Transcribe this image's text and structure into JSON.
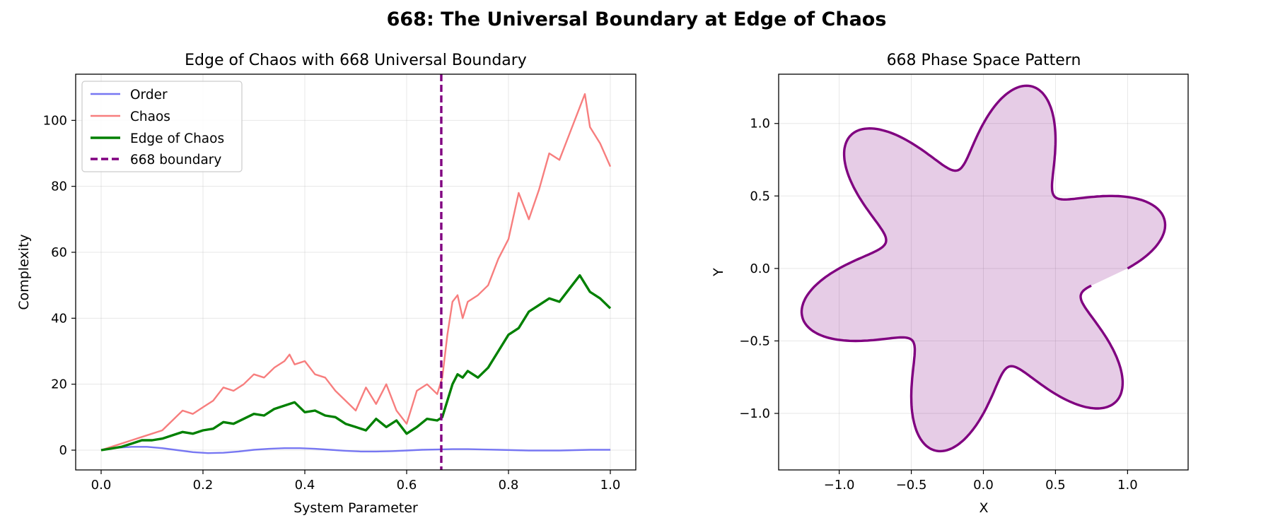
{
  "figure": {
    "suptitle": "668: The Universal Boundary at Edge of Chaos"
  },
  "chart_data": [
    {
      "type": "line",
      "title": "Edge of Chaos with 668 Universal Boundary",
      "xlabel": "System Parameter",
      "ylabel": "Complexity",
      "xlim": [
        -0.05,
        1.05
      ],
      "ylim": [
        -6,
        114
      ],
      "xticks": [
        0.0,
        0.2,
        0.4,
        0.6,
        0.8,
        1.0
      ],
      "xtick_labels": [
        "0.0",
        "0.2",
        "0.4",
        "0.6",
        "0.8",
        "1.0"
      ],
      "yticks": [
        0,
        20,
        40,
        60,
        80,
        100
      ],
      "ytick_labels": [
        "0",
        "20",
        "40",
        "60",
        "80",
        "100"
      ],
      "grid": true,
      "legend_position": "upper-left",
      "boundary": {
        "name": "668 boundary",
        "x": 0.668,
        "color": "#800080",
        "style": "dashed"
      },
      "series": [
        {
          "name": "Order",
          "color": "#7777f2",
          "x": [
            0.0,
            0.03,
            0.06,
            0.09,
            0.12,
            0.15,
            0.18,
            0.21,
            0.24,
            0.27,
            0.3,
            0.33,
            0.36,
            0.39,
            0.42,
            0.45,
            0.48,
            0.51,
            0.54,
            0.57,
            0.6,
            0.63,
            0.66,
            0.69,
            0.72,
            0.75,
            0.78,
            0.81,
            0.84,
            0.87,
            0.9,
            0.93,
            0.96,
            1.0
          ],
          "y": [
            0.0,
            0.7,
            1.0,
            1.0,
            0.6,
            0.0,
            -0.6,
            -0.9,
            -0.8,
            -0.4,
            0.1,
            0.4,
            0.6,
            0.6,
            0.4,
            0.1,
            -0.2,
            -0.4,
            -0.4,
            -0.3,
            -0.1,
            0.1,
            0.2,
            0.3,
            0.3,
            0.2,
            0.1,
            0.0,
            -0.1,
            -0.1,
            -0.1,
            0.0,
            0.1,
            0.1
          ]
        },
        {
          "name": "Chaos",
          "color": "#f77e7e",
          "x": [
            0.0,
            0.02,
            0.04,
            0.06,
            0.08,
            0.1,
            0.12,
            0.14,
            0.16,
            0.18,
            0.2,
            0.22,
            0.24,
            0.26,
            0.28,
            0.3,
            0.32,
            0.34,
            0.36,
            0.37,
            0.38,
            0.4,
            0.42,
            0.44,
            0.46,
            0.48,
            0.5,
            0.52,
            0.54,
            0.56,
            0.58,
            0.6,
            0.62,
            0.64,
            0.66,
            0.67,
            0.68,
            0.69,
            0.7,
            0.71,
            0.72,
            0.74,
            0.76,
            0.78,
            0.8,
            0.82,
            0.84,
            0.86,
            0.88,
            0.9,
            0.92,
            0.94,
            0.95,
            0.96,
            0.98,
            1.0
          ],
          "y": [
            0,
            1,
            2,
            3,
            4,
            5,
            6,
            9,
            12,
            11,
            13,
            15,
            19,
            18,
            20,
            23,
            22,
            25,
            27,
            29,
            26,
            27,
            23,
            22,
            18,
            15,
            12,
            19,
            14,
            20,
            12,
            8,
            18,
            20,
            17,
            22,
            35,
            45,
            47,
            40,
            45,
            47,
            50,
            58,
            64,
            78,
            70,
            79,
            90,
            88,
            96,
            104,
            108,
            98,
            93,
            86
          ]
        },
        {
          "name": "Edge of Chaos",
          "color": "#008000",
          "x": [
            0.0,
            0.02,
            0.04,
            0.06,
            0.08,
            0.1,
            0.12,
            0.14,
            0.16,
            0.18,
            0.2,
            0.22,
            0.24,
            0.26,
            0.28,
            0.3,
            0.32,
            0.34,
            0.36,
            0.38,
            0.4,
            0.42,
            0.44,
            0.46,
            0.48,
            0.5,
            0.52,
            0.54,
            0.56,
            0.58,
            0.6,
            0.62,
            0.64,
            0.66,
            0.67,
            0.68,
            0.69,
            0.7,
            0.71,
            0.72,
            0.74,
            0.76,
            0.78,
            0.8,
            0.82,
            0.84,
            0.86,
            0.88,
            0.9,
            0.92,
            0.94,
            0.96,
            0.98,
            1.0
          ],
          "y": [
            0,
            0.5,
            1,
            2,
            3,
            3,
            3.5,
            4.5,
            5.5,
            5,
            6,
            6.5,
            8.5,
            8,
            9.5,
            11,
            10.5,
            12.5,
            13.5,
            14.5,
            11.5,
            12,
            10.5,
            10,
            8,
            7,
            6,
            9.5,
            7,
            9,
            5,
            7,
            9.5,
            9,
            10,
            15,
            20,
            23,
            22,
            24,
            22,
            25,
            30,
            35,
            37,
            42,
            44,
            46,
            45,
            49,
            53,
            48,
            46,
            43
          ]
        }
      ]
    },
    {
      "type": "line",
      "title": "668 Phase Space Pattern",
      "xlabel": "X",
      "ylabel": "Y",
      "xlim": [
        -1.42,
        1.42
      ],
      "ylim": [
        -1.39,
        1.34
      ],
      "xticks": [
        -1.0,
        -0.5,
        0.0,
        0.5,
        1.0
      ],
      "xtick_labels": [
        "−1.0",
        "−0.5",
        "0.0",
        "0.5",
        "1.0"
      ],
      "yticks": [
        -1.0,
        -0.5,
        0.0,
        0.5,
        1.0
      ],
      "ytick_labels": [
        "−1.0",
        "−0.5",
        "0.0",
        "0.5",
        "1.0"
      ],
      "grid": true,
      "curve": {
        "color": "#800080",
        "fill_color": "#800080",
        "fill_alpha": 0.2,
        "description": "r(t) = 1 + 0.3*sin(6t), t in [0, 2π·(1 − 1/40)], x = r·cos t, y = r·sin t",
        "r_base": 1.0,
        "r_amplitude": 0.3,
        "lobes": 6,
        "t_end_fraction": 0.975
      }
    }
  ]
}
